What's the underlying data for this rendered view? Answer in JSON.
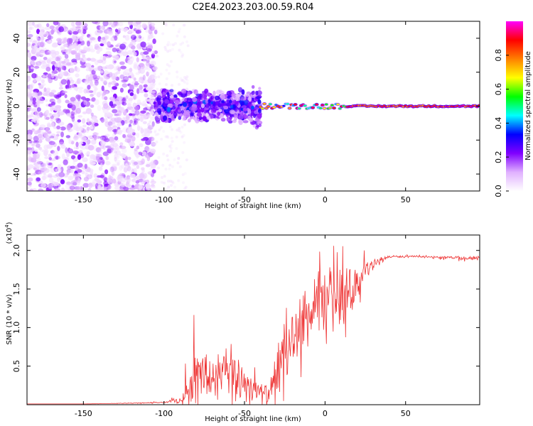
{
  "title": "C2E4.2023.203.00.59.R04",
  "chart_data": [
    {
      "type": "heatmap",
      "name": "spectrogram",
      "xlabel": "Height of straight line (km)",
      "ylabel": "Frequency (Hz)",
      "xlim": [
        -185,
        96
      ],
      "ylim": [
        -50,
        50
      ],
      "xticks": [
        -150,
        -100,
        -50,
        0,
        50
      ],
      "yticks": [
        -40,
        -20,
        0,
        20,
        40
      ],
      "colorbar": {
        "label": "Normalized spectral amplitude",
        "range": [
          0,
          1
        ],
        "ticks": [
          0.0,
          0.2,
          0.4,
          0.6,
          0.8
        ],
        "colormap": [
          "#ffffff",
          "#e0b0ff",
          "#8000ff",
          "#0000ff",
          "#00ffff",
          "#00ff00",
          "#ffff00",
          "#ff8000",
          "#ff0000",
          "#ff00ff"
        ]
      },
      "regions": [
        {
          "x": [
            -185,
            -105
          ],
          "freq": [
            -50,
            50
          ],
          "amplitude": 0.12,
          "description": "broadband noise"
        },
        {
          "x": [
            -105,
            -40
          ],
          "freq": [
            -8,
            8
          ],
          "amplitude": 0.3,
          "description": "mixed noise band"
        },
        {
          "x": [
            -40,
            96
          ],
          "freq": [
            -2,
            2
          ],
          "amplitude": 0.9,
          "description": "narrow line near 0 Hz"
        }
      ]
    },
    {
      "type": "line",
      "name": "snr",
      "xlabel": "Height of straight line (km)",
      "ylabel": "SNR (10 * v/v)",
      "ymultiplier": "(x10",
      "yexponent": "4",
      "ymultiplier_close": ")",
      "xlim": [
        -185,
        96
      ],
      "ylim": [
        0,
        2.2
      ],
      "xticks": [
        -150,
        -100,
        -50,
        0,
        50
      ],
      "yticks": [
        0.5,
        1.0,
        1.5,
        2.0
      ],
      "series": [
        {
          "name": "SNR",
          "color": "#ee3333",
          "x": [
            -185,
            -150,
            -120,
            -100,
            -90,
            -85,
            -80,
            -75,
            -70,
            -65,
            -60,
            -55,
            -50,
            -45,
            -40,
            -35,
            -30,
            -27,
            -25,
            -20,
            -15,
            -10,
            -5,
            0,
            5,
            10,
            15,
            20,
            25,
            30,
            35,
            40,
            50,
            60,
            70,
            80,
            90,
            96
          ],
          "values": [
            0.01,
            0.01,
            0.02,
            0.03,
            0.06,
            0.18,
            0.35,
            0.38,
            0.33,
            0.36,
            0.4,
            0.35,
            0.3,
            0.22,
            0.15,
            0.12,
            0.35,
            0.8,
            0.7,
            0.85,
            1.05,
            1.15,
            1.25,
            1.3,
            1.4,
            1.35,
            1.45,
            1.6,
            1.72,
            1.82,
            1.88,
            1.92,
            1.92,
            1.92,
            1.91,
            1.91,
            1.9,
            1.88
          ],
          "noise": [
            0,
            0,
            0.005,
            0.01,
            0.05,
            0.3,
            0.45,
            0.45,
            0.45,
            0.45,
            0.45,
            0.4,
            0.35,
            0.25,
            0.18,
            0.15,
            0.4,
            0.5,
            0.4,
            0.45,
            0.5,
            0.5,
            0.55,
            0.6,
            0.5,
            0.45,
            0.4,
            0.25,
            0.15,
            0.08,
            0.05,
            0.02,
            0.015,
            0.015,
            0.015,
            0.02,
            0.03,
            0.06
          ]
        }
      ]
    }
  ]
}
